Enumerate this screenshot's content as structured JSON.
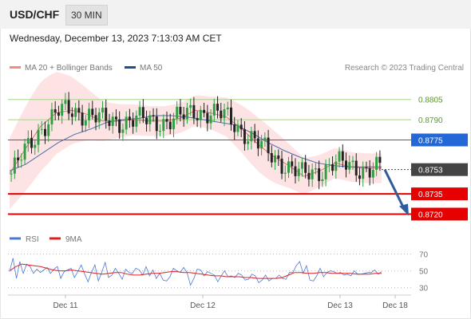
{
  "header": {
    "symbol": "USD/CHF",
    "interval": "30 MIN"
  },
  "datetime": "Wednesday, December 13, 2023 7:13:03 AM CET",
  "legend": {
    "ma20": {
      "label": "MA 20 + Bollinger Bands",
      "color": "#f28b82"
    },
    "ma50": {
      "label": "MA 50",
      "color": "#1f4e8c"
    },
    "copyright": "Research © 2023 Trading Central"
  },
  "colors": {
    "up": "#2ea043",
    "down": "#222222",
    "band": "#fcdada",
    "ma20": "#e57373",
    "ma50": "#4b6fae",
    "resistance": "#a5d48a",
    "pivot": "#2468d8",
    "support": "#e60000",
    "arrow": "#2e5d99",
    "rsi": "#4a78d6",
    "rsi_ma": "#e02020"
  },
  "chart_data": [
    {
      "type": "candlestick",
      "title": "USD/CHF",
      "ylim": [
        0.8712,
        0.8822
      ],
      "x_ticks": [
        "Dec 11",
        "Dec 12",
        "Dec 13",
        "Dec 18"
      ],
      "levels": [
        {
          "label": "0.8805",
          "value": 0.8805,
          "kind": "resistance"
        },
        {
          "label": "0.8790",
          "value": 0.879,
          "kind": "resistance"
        },
        {
          "label": "0.8775",
          "value": 0.8775,
          "kind": "pivot"
        },
        {
          "label": "0.8753",
          "value": 0.8753,
          "kind": "last"
        },
        {
          "label": "0.8735",
          "value": 0.8735,
          "kind": "support"
        },
        {
          "label": "0.8720",
          "value": 0.872,
          "kind": "support"
        }
      ],
      "series": [
        {
          "name": "MA 20 + Bollinger Bands",
          "values": [
            0.875,
            0.8768,
            0.8785,
            0.8795,
            0.8797,
            0.8794,
            0.8789,
            0.8789,
            0.879,
            0.8789,
            0.8789,
            0.8791,
            0.8797,
            0.8795,
            0.8792,
            0.8783,
            0.8772,
            0.8763,
            0.8756,
            0.8748,
            0.8752,
            0.8758,
            0.8755,
            0.8754,
            0.8754
          ]
        },
        {
          "name": "MA 50",
          "values": [
            0.8752,
            0.8757,
            0.8765,
            0.8773,
            0.8779,
            0.8783,
            0.8788,
            0.879,
            0.8791,
            0.8793,
            0.8793,
            0.8792,
            0.879,
            0.8788,
            0.8786,
            0.878,
            0.8773,
            0.8767,
            0.8762,
            0.8758,
            0.8756,
            0.8755,
            0.8755,
            0.8755
          ]
        }
      ],
      "forecast": {
        "from": 0.8753,
        "to": 0.872
      }
    },
    {
      "type": "line",
      "title": "RSI",
      "ylim": [
        25,
        78
      ],
      "y_ticks": [
        30,
        50,
        70
      ],
      "series": [
        {
          "name": "RSI",
          "values": [
            49,
            65,
            41,
            61,
            47,
            58,
            55,
            47,
            52,
            48,
            51,
            54,
            47,
            52,
            55,
            41,
            49,
            51,
            53,
            42,
            49,
            57,
            46,
            37,
            48,
            57,
            38,
            48,
            60,
            42,
            45,
            53,
            47,
            40,
            52,
            48,
            47,
            53,
            51,
            45,
            55,
            44,
            51,
            41,
            47,
            39,
            38,
            43,
            53,
            50,
            48,
            54,
            48,
            33,
            41,
            52,
            51,
            44,
            49,
            47,
            45,
            37,
            44,
            50,
            43,
            44,
            42,
            47,
            45,
            39,
            40,
            46,
            44,
            36,
            39,
            45,
            38,
            41,
            41,
            45,
            41,
            40,
            48,
            48,
            56,
            61,
            47,
            56,
            39,
            38,
            44,
            53,
            43,
            48,
            50,
            49,
            47,
            48,
            45,
            46,
            44,
            50,
            46,
            46,
            47,
            48,
            48,
            51,
            46,
            49
          ]
        },
        {
          "name": "9MA",
          "values": [
            50,
            55,
            58,
            57,
            56,
            55,
            53,
            51,
            50,
            50,
            51,
            50,
            49,
            48,
            47,
            46,
            47,
            48,
            48,
            46,
            45,
            45,
            46,
            47,
            47,
            48,
            49,
            49,
            48,
            48,
            47,
            46,
            45,
            44,
            44,
            43,
            43,
            43,
            42,
            42,
            41,
            41,
            41,
            41,
            42,
            45,
            48,
            48,
            47,
            47,
            48,
            48,
            47,
            47,
            47,
            47,
            46,
            46,
            46,
            47,
            47
          ]
        }
      ]
    }
  ]
}
